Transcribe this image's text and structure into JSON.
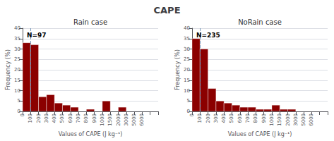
{
  "title": "CAPE",
  "chart_data": [
    {
      "type": "bar",
      "title": "Rain case",
      "xlabel": "Values of CAPE (J kg⁻¹)",
      "ylabel": "Frequency (%)",
      "categories": [
        "0",
        "100",
        "200",
        "300",
        "400",
        "500",
        "600",
        "700",
        "800",
        "900",
        "1000",
        "1500",
        "2000",
        "3000",
        "5000",
        "6000",
        null
      ],
      "series": [
        {
          "type": "bar",
          "color": "#8B0000",
          "values": [
            33,
            32,
            7,
            8,
            4,
            3,
            2,
            0,
            1,
            0,
            5,
            0,
            2,
            0,
            0,
            0,
            0
          ]
        },
        {
          "type": "vline",
          "x": "100",
          "color": "#7799BB",
          "line_style": "dashed"
        }
      ],
      "ylim": [
        0,
        40
      ],
      "yticks": [
        0,
        5,
        10,
        15,
        20,
        25,
        30,
        35,
        40
      ],
      "grid": true,
      "annotations": [
        "N=97"
      ]
    },
    {
      "type": "bar",
      "title": "NoRain case",
      "xlabel": "Values of CAPE (J kg⁻¹)",
      "ylabel": "Frequency (%)",
      "categories": [
        "0",
        "100",
        "200",
        "300",
        "400",
        "500",
        "600",
        "700",
        "800",
        "900",
        "1000",
        "1500",
        "2000",
        "3000",
        "5000",
        "6000",
        null
      ],
      "series": [
        {
          "type": "bar",
          "color": "#8B0000",
          "values": [
            35,
            30,
            11,
            5,
            4,
            3,
            2,
            2,
            1,
            1,
            3,
            1,
            1,
            0,
            0,
            0,
            0
          ]
        },
        {
          "type": "vline",
          "x": "100",
          "color": "#7799BB",
          "line_style": "dashed"
        }
      ],
      "ylim": [
        0,
        40
      ],
      "yticks": [
        0,
        5,
        10,
        15,
        20,
        25,
        30,
        35,
        40
      ],
      "grid": true,
      "annotations": [
        "N=235"
      ]
    }
  ]
}
